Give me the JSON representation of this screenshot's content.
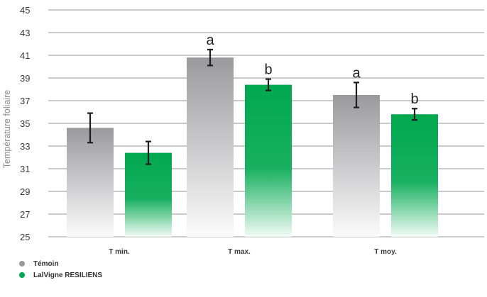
{
  "chart_data": {
    "type": "bar",
    "title": "",
    "xlabel": "",
    "ylabel": "Température foliaire",
    "ylim": [
      25,
      45
    ],
    "yticks": [
      25,
      27,
      29,
      31,
      33,
      35,
      37,
      39,
      41,
      43,
      45
    ],
    "grid": true,
    "legend_position": "bottom-left",
    "categories": [
      "T min.",
      "T max.",
      "T moy."
    ],
    "series": [
      {
        "name": "Témoin",
        "color": "#9a9a9c",
        "values": [
          34.6,
          40.8,
          37.5
        ],
        "error": [
          1.3,
          0.7,
          1.1
        ],
        "significance": [
          "",
          "a",
          "a"
        ]
      },
      {
        "name": "LalVigne RESILIENS",
        "color": "#00a84f",
        "values": [
          32.4,
          38.4,
          35.8
        ],
        "error": [
          1.0,
          0.5,
          0.5
        ],
        "significance": [
          "",
          "b",
          "b"
        ]
      }
    ]
  }
}
